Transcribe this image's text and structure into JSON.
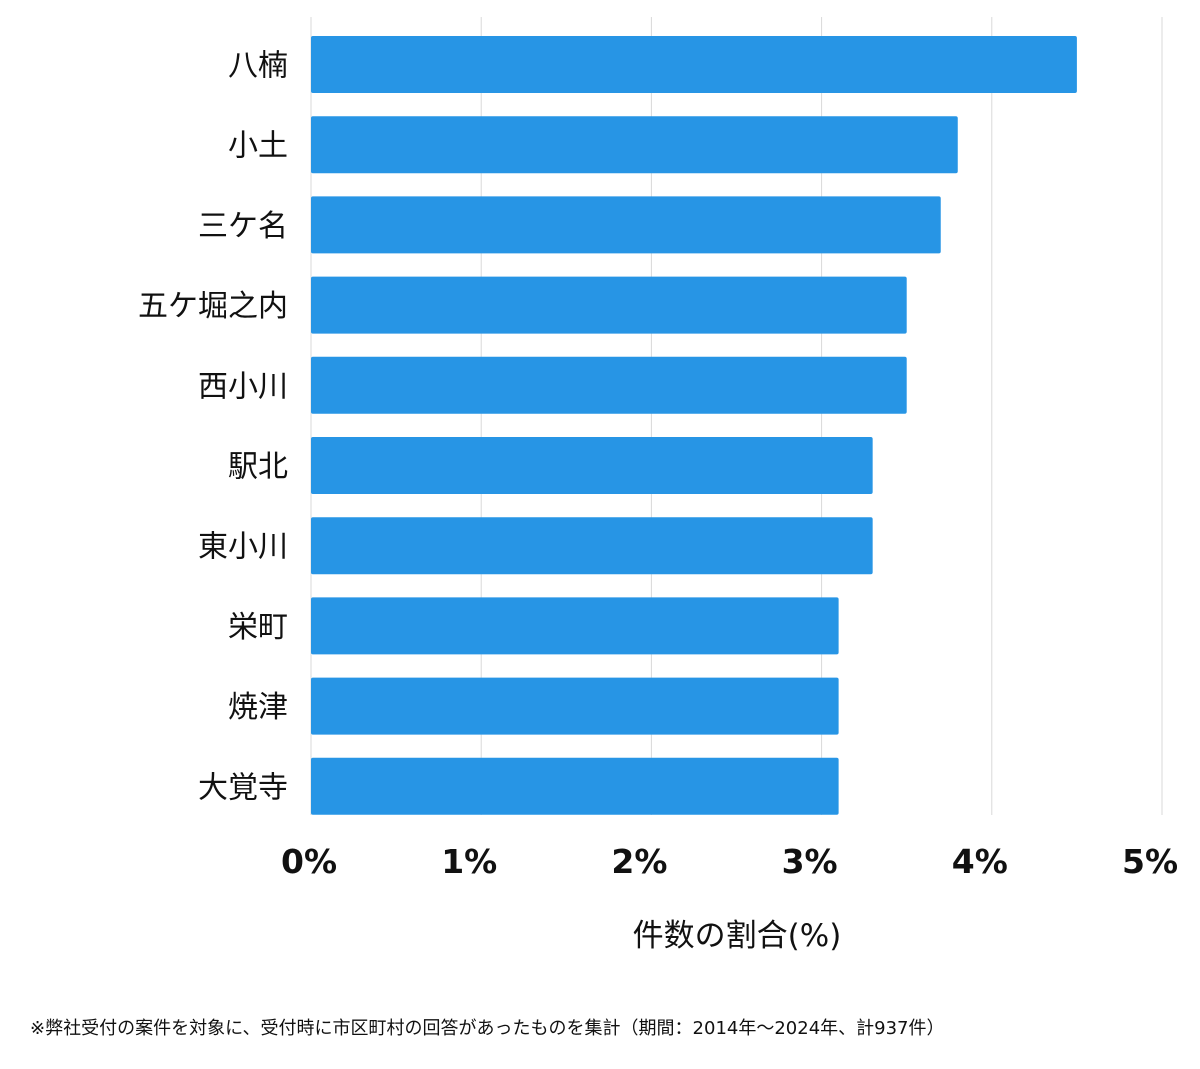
{
  "chart_data": {
    "type": "bar",
    "orientation": "horizontal",
    "categories": [
      "八楠",
      "小土",
      "三ケ名",
      "五ケ堀之内",
      "西小川",
      "駅北",
      "東小川",
      "栄町",
      "焼津",
      "大覚寺"
    ],
    "values": [
      4.5,
      3.8,
      3.7,
      3.5,
      3.5,
      3.3,
      3.3,
      3.1,
      3.1,
      3.1
    ],
    "xlim": [
      0,
      5
    ],
    "xticks": [
      "0%",
      "1%",
      "2%",
      "3%",
      "4%",
      "5%"
    ],
    "xlabel": "件数の割合(%)",
    "ylabel": "",
    "grid": true,
    "bar_color": "#2795e5"
  },
  "footnote": "※弊社受付の案件を対象に、受付時に市区町村の回答があったものを集計（期間：2014年～2024年、計937件）"
}
